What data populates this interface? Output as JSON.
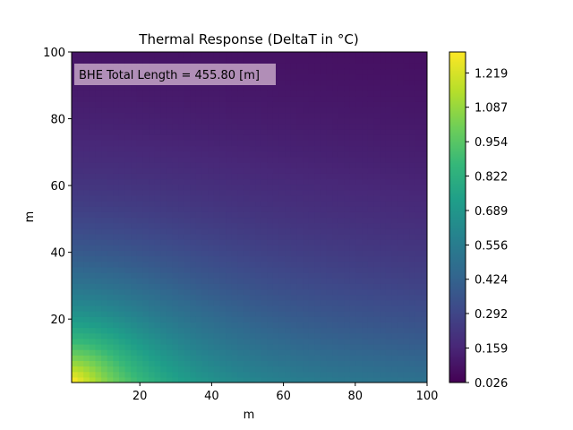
{
  "chart_data": {
    "type": "heatmap",
    "title": "Thermal Response (DeltaT in °C)",
    "xlabel": "m",
    "ylabel": "m",
    "xlim": [
      1,
      100
    ],
    "ylim": [
      1,
      100
    ],
    "x_ticks": [
      20,
      40,
      60,
      80,
      100
    ],
    "y_ticks": [
      20,
      40,
      60,
      80,
      100
    ],
    "annotation": "BHE Total Length = 455.80 [m]",
    "colormap": "viridis",
    "colorbar": {
      "min": 0.026,
      "max": 1.3,
      "ticks": [
        "1.219",
        "1.087",
        "0.954",
        "0.822",
        "0.689",
        "0.556",
        "0.424",
        "0.292",
        "0.159",
        "0.026"
      ]
    },
    "heat_source_corner": [
      1,
      1
    ],
    "peak_value": 1.3,
    "grid": false,
    "legend": "none"
  }
}
